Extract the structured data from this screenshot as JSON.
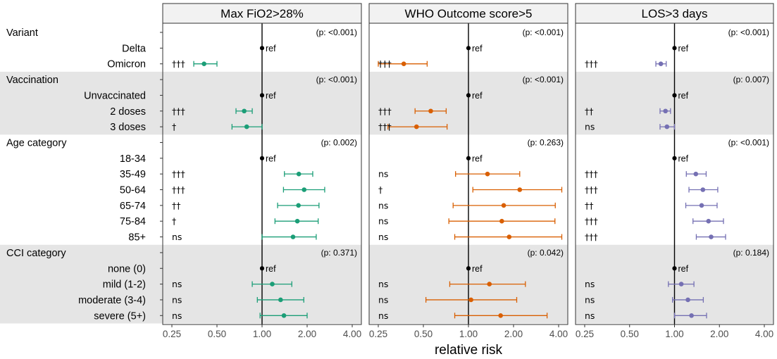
{
  "chart_data": {
    "type": "forest",
    "xlabel": "relative risk",
    "x_scale": "log2",
    "xlim": [
      0.25,
      4.0
    ],
    "x_ticks": [
      0.25,
      0.5,
      1.0,
      2.0,
      4.0
    ],
    "x_tick_labels": [
      "0.25",
      "0.50",
      "1.00",
      "2.00",
      "4.00"
    ],
    "reference_line": 1.0,
    "grid": false,
    "groups": [
      {
        "label": "Variant",
        "shaded": false,
        "rows": [
          "Delta",
          "Omicron"
        ]
      },
      {
        "label": "Vaccination",
        "shaded": true,
        "rows": [
          "Unvaccinated",
          "2 doses",
          "3 doses"
        ]
      },
      {
        "label": "Age category",
        "shaded": false,
        "rows": [
          "18-34",
          "35-49",
          "50-64",
          "65-74",
          "75-84",
          "85+"
        ]
      },
      {
        "label": "CCI category",
        "shaded": true,
        "rows": [
          "none (0)",
          "mild (1-2)",
          "moderate (3-4)",
          "severe (5+)"
        ]
      }
    ],
    "ref_label": "ref",
    "panels": [
      {
        "title": "Max FiO2>28%",
        "color": "#1b9e77",
        "pvalues": [
          "(p: <0.001)",
          "(p: <0.001)",
          "(p: 0.002)",
          "(p: 0.371)"
        ],
        "estimates": [
          [
            {
              "ref": true
            },
            {
              "est": 0.41,
              "lo": 0.35,
              "hi": 0.5,
              "sig": "†††"
            }
          ],
          [
            {
              "ref": true
            },
            {
              "est": 0.76,
              "lo": 0.67,
              "hi": 0.86,
              "sig": "†††"
            },
            {
              "est": 0.79,
              "lo": 0.63,
              "hi": 1.0,
              "sig": "†"
            }
          ],
          [
            {
              "ref": true
            },
            {
              "est": 1.76,
              "lo": 1.41,
              "hi": 2.18,
              "sig": "†††"
            },
            {
              "est": 1.91,
              "lo": 1.39,
              "hi": 2.62,
              "sig": "†††"
            },
            {
              "est": 1.75,
              "lo": 1.27,
              "hi": 2.4,
              "sig": "††"
            },
            {
              "est": 1.72,
              "lo": 1.22,
              "hi": 2.37,
              "sig": "†"
            },
            {
              "est": 1.61,
              "lo": 1.0,
              "hi": 2.3,
              "sig": "ns"
            }
          ],
          [
            {
              "ref": true
            },
            {
              "est": 1.17,
              "lo": 0.86,
              "hi": 1.58,
              "sig": "ns"
            },
            {
              "est": 1.33,
              "lo": 0.93,
              "hi": 1.9,
              "sig": "ns"
            },
            {
              "est": 1.4,
              "lo": 0.97,
              "hi": 2.0,
              "sig": "ns"
            }
          ]
        ]
      },
      {
        "title": "WHO Outcome score>5",
        "color": "#d95f02",
        "pvalues": [
          "(p: <0.001)",
          "(p: <0.001)",
          "(p: 0.263)",
          "(p: 0.042)"
        ],
        "estimates": [
          [
            {
              "ref": true
            },
            {
              "est": 0.37,
              "lo": 0.25,
              "hi": 0.53,
              "sig": "†††"
            }
          ],
          [
            {
              "ref": true
            },
            {
              "est": 0.56,
              "lo": 0.44,
              "hi": 0.71,
              "sig": "†††"
            },
            {
              "est": 0.45,
              "lo": 0.29,
              "hi": 0.72,
              "sig": "†††"
            }
          ],
          [
            {
              "ref": true
            },
            {
              "est": 1.34,
              "lo": 0.82,
              "hi": 2.2,
              "sig": "ns"
            },
            {
              "est": 2.2,
              "lo": 1.07,
              "hi": 4.2,
              "sig": "†"
            },
            {
              "est": 1.72,
              "lo": 0.79,
              "hi": 3.8,
              "sig": "ns"
            },
            {
              "est": 1.67,
              "lo": 0.74,
              "hi": 3.78,
              "sig": "ns"
            },
            {
              "est": 1.87,
              "lo": 0.81,
              "hi": 4.2,
              "sig": "ns"
            }
          ],
          [
            {
              "ref": true
            },
            {
              "est": 1.38,
              "lo": 0.75,
              "hi": 2.4,
              "sig": "ns"
            },
            {
              "est": 1.04,
              "lo": 0.52,
              "hi": 2.1,
              "sig": "ns"
            },
            {
              "est": 1.64,
              "lo": 0.81,
              "hi": 3.35,
              "sig": "ns"
            }
          ]
        ]
      },
      {
        "title": "LOS>3 days",
        "color": "#7570b3",
        "pvalues": [
          "(p: <0.001)",
          "(p: 0.007)",
          "(p: <0.001)",
          "(p: 0.184)"
        ],
        "estimates": [
          [
            {
              "ref": true
            },
            {
              "est": 0.81,
              "lo": 0.75,
              "hi": 0.88,
              "sig": "†††"
            }
          ],
          [
            {
              "ref": true
            },
            {
              "est": 0.87,
              "lo": 0.8,
              "hi": 0.94,
              "sig": "††"
            },
            {
              "est": 0.89,
              "lo": 0.8,
              "hi": 1.0,
              "sig": "ns"
            }
          ],
          [
            {
              "ref": true
            },
            {
              "est": 1.39,
              "lo": 1.2,
              "hi": 1.63,
              "sig": "†††"
            },
            {
              "est": 1.55,
              "lo": 1.25,
              "hi": 1.95,
              "sig": "†††"
            },
            {
              "est": 1.52,
              "lo": 1.19,
              "hi": 1.93,
              "sig": "††"
            },
            {
              "est": 1.69,
              "lo": 1.33,
              "hi": 2.13,
              "sig": "†††"
            },
            {
              "est": 1.76,
              "lo": 1.4,
              "hi": 2.2,
              "sig": "†††"
            }
          ],
          [
            {
              "ref": true
            },
            {
              "est": 1.11,
              "lo": 0.91,
              "hi": 1.35,
              "sig": "ns"
            },
            {
              "est": 1.23,
              "lo": 0.97,
              "hi": 1.56,
              "sig": "ns"
            },
            {
              "est": 1.3,
              "lo": 1.0,
              "hi": 1.64,
              "sig": "ns"
            }
          ]
        ]
      }
    ]
  }
}
